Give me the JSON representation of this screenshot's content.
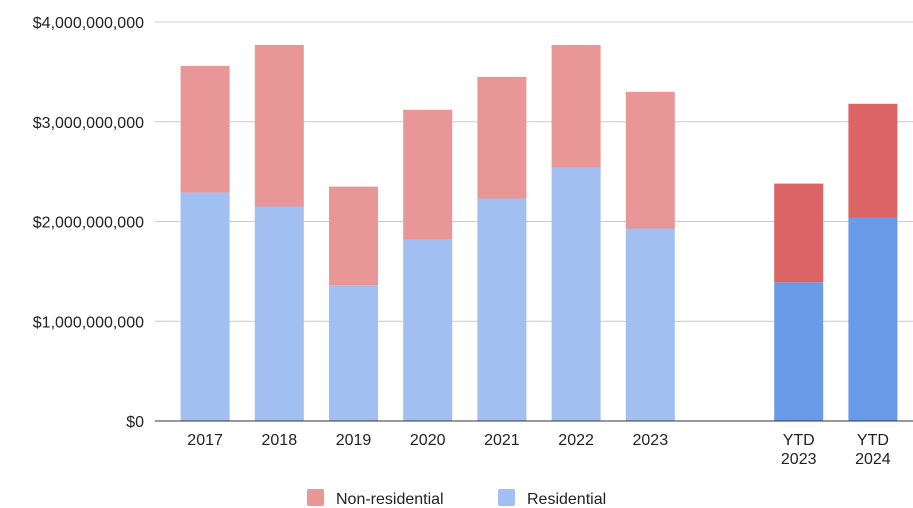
{
  "chart_data": {
    "type": "bar",
    "stacked": true,
    "title": "",
    "xlabel": "",
    "ylabel": "",
    "ylim": [
      0,
      4000000000
    ],
    "yticks": [
      "$0",
      "$1,000,000,000",
      "$2,000,000,000",
      "$3,000,000,000",
      "$4,000,000,000"
    ],
    "ytick_values": [
      0,
      1000000000,
      2000000000,
      3000000000,
      4000000000
    ],
    "grid": true,
    "legend_position": "bottom",
    "categories": [
      "2017",
      "2018",
      "2019",
      "2020",
      "2021",
      "2022",
      "2023",
      "",
      "YTD 2023",
      "YTD 2024"
    ],
    "category_lines": [
      [
        "2017"
      ],
      [
        "2018"
      ],
      [
        "2019"
      ],
      [
        "2020"
      ],
      [
        "2021"
      ],
      [
        "2022"
      ],
      [
        "2023"
      ],
      [],
      [
        "YTD",
        "2023"
      ],
      [
        "YTD",
        "2024"
      ]
    ],
    "series": [
      {
        "name": "Residential",
        "values": [
          2290000000,
          2150000000,
          1360000000,
          1820000000,
          2230000000,
          2540000000,
          1930000000,
          null,
          1390000000,
          2040000000
        ],
        "color": "#a1bff0",
        "ytd_color": "#6a9be8"
      },
      {
        "name": "Non-residential",
        "values": [
          1270000000,
          1620000000,
          990000000,
          1300000000,
          1220000000,
          1230000000,
          1370000000,
          null,
          990000000,
          1140000000
        ],
        "color": "#e89696",
        "ytd_color": "#dc6464"
      }
    ],
    "legend": [
      {
        "name": "Non-residential",
        "color": "#e89696"
      },
      {
        "name": "Residential",
        "color": "#a1bff0"
      }
    ]
  }
}
